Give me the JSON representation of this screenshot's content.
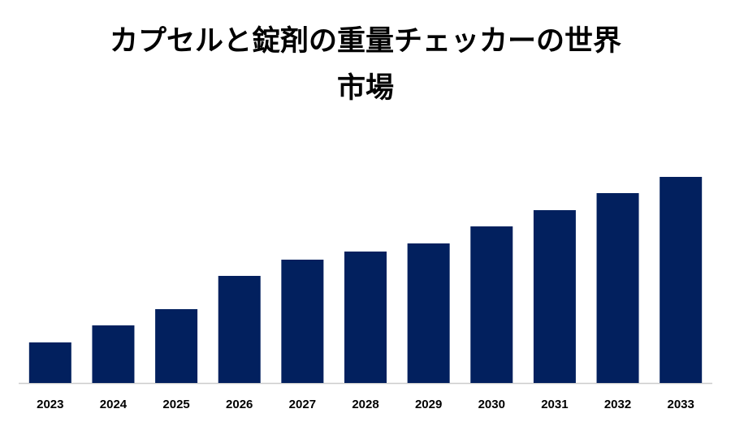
{
  "chart_data": {
    "type": "bar",
    "title": "カプセルと錠剤の重量チェッカーの世界市場",
    "categories": [
      "2023",
      "2024",
      "2025",
      "2026",
      "2027",
      "2028",
      "2029",
      "2030",
      "2031",
      "2032",
      "2033"
    ],
    "values": [
      50,
      71,
      91,
      132,
      152,
      162,
      172,
      193,
      213,
      234,
      254
    ],
    "color": "#02205e",
    "ylim": [
      0,
      300
    ]
  }
}
